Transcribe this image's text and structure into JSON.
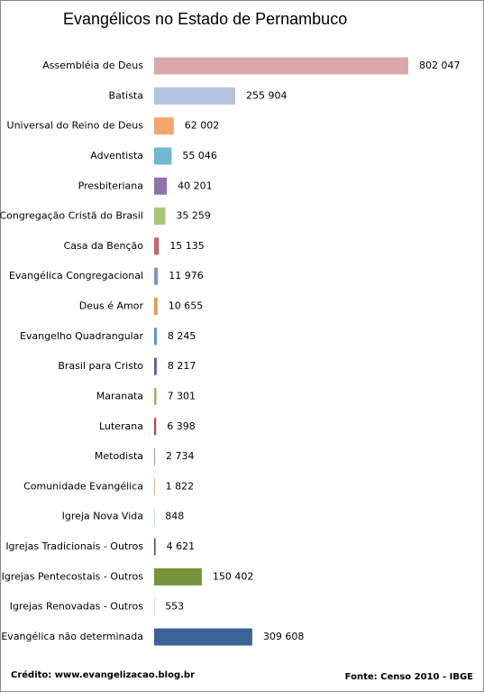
{
  "chart_data": {
    "type": "hbar",
    "title": "Evangélicos no Estado de Pernambuco",
    "categories": [
      "Assembléia de Deus",
      "Batista",
      "Universal do Reino de Deus",
      "Adventista",
      "Presbiteriana",
      "Congregação Cristã do Brasil",
      "Casa da Benção",
      "Evangélica Congregacional",
      "Deus é Amor",
      "Evangelho Quadrangular",
      "Brasil para Cristo",
      "Maranata",
      "Luterana",
      "Metodista",
      "Comunidade Evangélica",
      "Igreja Nova Vida",
      "Igrejas Tradicionais - Outros",
      "Igrejas Pentecostais - Outros",
      "Igrejas Renovadas - Outros",
      "Evangélica não determinada"
    ],
    "values": [
      802047,
      255904,
      62002,
      55046,
      40201,
      35259,
      15135,
      11976,
      10655,
      8245,
      8217,
      7301,
      6398,
      2734,
      1822,
      848,
      4621,
      150402,
      553,
      309608
    ],
    "value_labels": [
      "802 047",
      "255 904",
      "62 002",
      "55 046",
      "40 201",
      "35 259",
      "15 135",
      "11 976",
      "10 655",
      "8 245",
      "8 217",
      "7 301",
      "6 398",
      "2 734",
      "1 822",
      "848",
      "4 621",
      "150 402",
      "553",
      "309 608"
    ],
    "colors": [
      "#d9a7aa",
      "#b4c3e0",
      "#f7a56e",
      "#6fb8d1",
      "#8f72ae",
      "#a9c77a",
      "#c06a6a",
      "#7c96c4",
      "#e89a4f",
      "#4b9db5",
      "#6f5a94",
      "#9cba6a",
      "#b24a48",
      "#7f93c0",
      "#e58c3c",
      "#4bacc6",
      "#604a7b",
      "#77933c",
      "#953735",
      "#3b6397"
    ],
    "credit": "Crédito: www.evangelizacao.blog.br",
    "source": "Fonte: Censo 2010 - IBGE"
  }
}
